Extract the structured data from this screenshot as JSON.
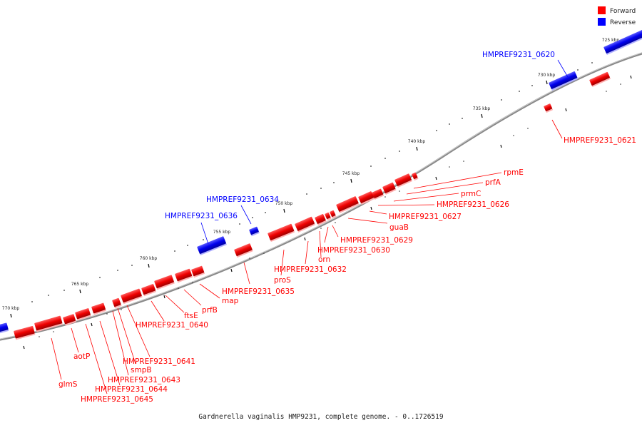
{
  "caption": "Gardnerella vaginalis HMP9231, complete genome. - 0..1726519",
  "legend": [
    {
      "label": "Forward",
      "color": "#ff0000"
    },
    {
      "label": "Reverse",
      "color": "#0000ff"
    }
  ],
  "colors": {
    "forward": "#ff0000",
    "reverse": "#0000ff",
    "backbone": "#888888"
  },
  "ticks": [
    "725 kbp",
    "730 kbp",
    "735 kbp",
    "740 kbp",
    "745 kbp",
    "750 kbp",
    "755 kbp",
    "760 kbp",
    "765 kbp",
    "770 kbp"
  ],
  "genes": [
    {
      "label": "HMPREF9231_0620",
      "strand": "reverse"
    },
    {
      "label": "HMPREF9231_0621",
      "strand": "forward"
    },
    {
      "label": "rpmE",
      "strand": "forward"
    },
    {
      "label": "prfA",
      "strand": "forward"
    },
    {
      "label": "prmC",
      "strand": "forward"
    },
    {
      "label": "HMPREF9231_0626",
      "strand": "forward"
    },
    {
      "label": "HMPREF9231_0627",
      "strand": "forward"
    },
    {
      "label": "guaB",
      "strand": "forward"
    },
    {
      "label": "HMPREF9231_0629",
      "strand": "forward"
    },
    {
      "label": "HMPREF9231_0630",
      "strand": "forward"
    },
    {
      "label": "orn",
      "strand": "forward"
    },
    {
      "label": "HMPREF9231_0632",
      "strand": "forward"
    },
    {
      "label": "proS",
      "strand": "forward"
    },
    {
      "label": "HMPREF9231_0634",
      "strand": "reverse"
    },
    {
      "label": "HMPREF9231_0635",
      "strand": "forward"
    },
    {
      "label": "HMPREF9231_0636",
      "strand": "reverse"
    },
    {
      "label": "map",
      "strand": "forward"
    },
    {
      "label": "prfB",
      "strand": "forward"
    },
    {
      "label": "ftsE",
      "strand": "forward"
    },
    {
      "label": "HMPREF9231_0640",
      "strand": "forward"
    },
    {
      "label": "HMPREF9231_0641",
      "strand": "forward"
    },
    {
      "label": "smpB",
      "strand": "forward"
    },
    {
      "label": "HMPREF9231_0643",
      "strand": "forward"
    },
    {
      "label": "HMPREF9231_0644",
      "strand": "forward"
    },
    {
      "label": "HMPREF9231_0645",
      "strand": "forward"
    },
    {
      "label": "aotP",
      "strand": "forward"
    },
    {
      "label": "glmS",
      "strand": "forward"
    }
  ]
}
